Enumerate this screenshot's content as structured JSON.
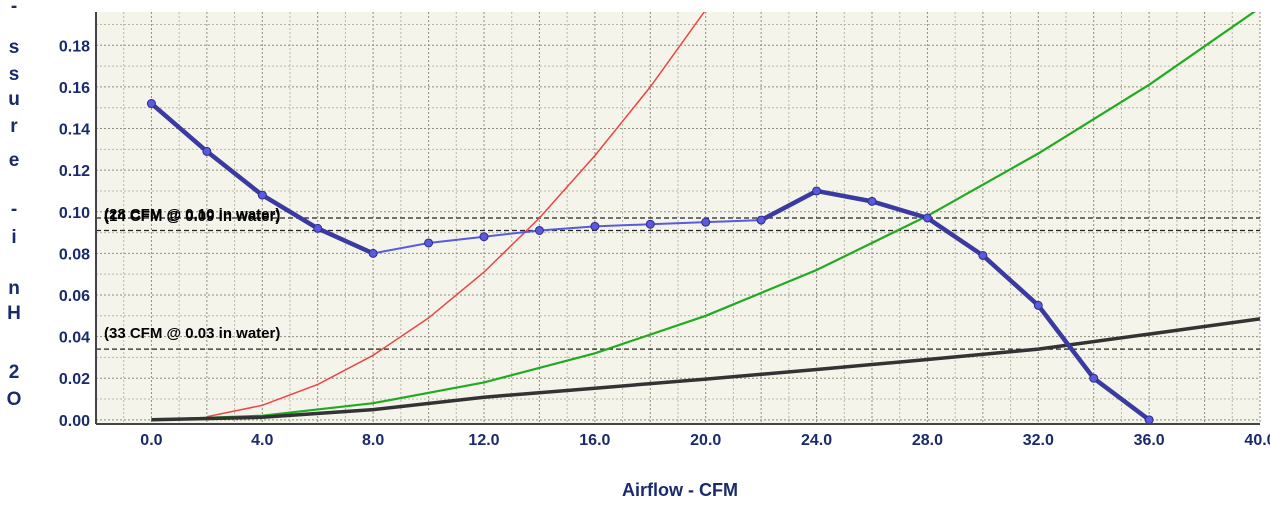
{
  "chart_data": {
    "type": "line",
    "xlabel": "Airflow - CFM",
    "ylabel_visible": "- s s u r e - i n H 2 O",
    "xlim": [
      -2,
      40
    ],
    "ylim": [
      -0.002,
      0.196
    ],
    "x_ticks": [
      "0.0",
      "4.0",
      "8.0",
      "12.0",
      "16.0",
      "20.0",
      "24.0",
      "28.0",
      "32.0",
      "36.0",
      "40.0"
    ],
    "y_ticks": [
      "0.00",
      "0.02",
      "0.04",
      "0.06",
      "0.08",
      "0.10",
      "0.12",
      "0.14",
      "0.16",
      "0.18"
    ],
    "grid": true,
    "colors": {
      "fan_curve": "#3a3aa0",
      "fan_curve_light": "#5a5ae0",
      "red_curve": "#ee4444",
      "green_curve": "#22aa22",
      "black_curve": "#333333",
      "plot_bg": "#f4f4ea",
      "grid": "#9a9a8a",
      "axis_text": "#1a2a6c"
    },
    "series": [
      {
        "key": "fan",
        "x": [
          0,
          2,
          4,
          6,
          8,
          10,
          12,
          14,
          16,
          18,
          20,
          22,
          24,
          26,
          28,
          30,
          32,
          34,
          36
        ],
        "y": [
          0.152,
          0.129,
          0.108,
          0.092,
          0.08,
          0.085,
          0.088,
          0.091,
          0.093,
          0.094,
          0.095,
          0.096,
          0.11,
          0.105,
          0.097,
          0.079,
          0.055,
          0.02,
          0.0
        ]
      },
      {
        "key": "red",
        "x": [
          2,
          4,
          6,
          8,
          10,
          12,
          14,
          16,
          18,
          20
        ],
        "y": [
          0.0015,
          0.007,
          0.017,
          0.031,
          0.049,
          0.071,
          0.097,
          0.127,
          0.16,
          0.197
        ]
      },
      {
        "key": "green",
        "x": [
          0,
          4,
          8,
          12,
          16,
          20,
          24,
          28,
          32,
          36,
          40
        ],
        "y": [
          0.0,
          0.002,
          0.008,
          0.018,
          0.032,
          0.05,
          0.072,
          0.098,
          0.128,
          0.161,
          0.198
        ]
      },
      {
        "key": "black",
        "x": [
          0,
          4,
          8,
          12,
          16,
          20,
          24,
          28,
          32,
          36,
          40
        ],
        "y": [
          0.0,
          0.0012,
          0.0049,
          0.0109,
          0.0152,
          0.0196,
          0.0242,
          0.029,
          0.034,
          0.0412,
          0.0485
        ]
      }
    ],
    "reference_lines": [
      {
        "y": 0.097,
        "label": "(28 CFM @ 0.10 in water)"
      },
      {
        "y": 0.091,
        "label": "(14 CFM @ 0.09 in water)"
      },
      {
        "y": 0.034,
        "label": "(33 CFM @ 0.03 in water)"
      }
    ]
  }
}
